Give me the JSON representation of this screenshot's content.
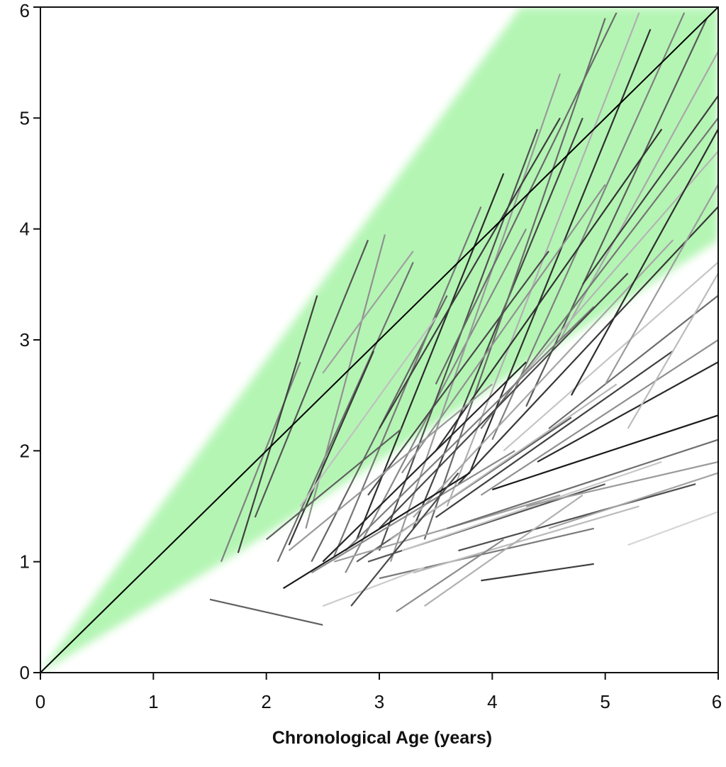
{
  "chart_data": {
    "type": "line",
    "title": "",
    "xlabel": "Chronological Age (years)",
    "ylabel": "",
    "xlim": [
      0,
      6
    ],
    "ylim": [
      0,
      6
    ],
    "x_ticks": [
      "0",
      "1",
      "2",
      "3",
      "4",
      "5",
      "6"
    ],
    "y_ticks": [
      "0",
      "1",
      "2",
      "3",
      "4",
      "5",
      "6"
    ],
    "grid": false,
    "legend": "none",
    "reference_line": {
      "x": [
        0,
        6
      ],
      "y": [
        0,
        6
      ],
      "color": "#000000"
    },
    "normal_band": {
      "color": "#b4f5b4",
      "polygon": [
        [
          0,
          0
        ],
        [
          1.7,
          1.05
        ],
        [
          6,
          3.9
        ],
        [
          6,
          6
        ],
        [
          4.25,
          6
        ]
      ]
    },
    "series": [
      {
        "x": [
          1.5,
          2.5
        ],
        "y": [
          0.66,
          0.43
        ],
        "color": "#606060"
      },
      {
        "x": [
          1.6,
          2.3
        ],
        "y": [
          1.0,
          2.8
        ],
        "color": "#808080"
      },
      {
        "x": [
          1.75,
          2.45
        ],
        "y": [
          1.08,
          3.4
        ],
        "color": "#404040"
      },
      {
        "x": [
          1.9,
          2.9
        ],
        "y": [
          1.4,
          3.9
        ],
        "color": "#555555"
      },
      {
        "x": [
          2.1,
          3.3
        ],
        "y": [
          1.0,
          3.7
        ],
        "color": "#707070"
      },
      {
        "x": [
          2.35,
          3.05
        ],
        "y": [
          1.3,
          3.95
        ],
        "color": "#909090"
      },
      {
        "x": [
          2.5,
          3.3
        ],
        "y": [
          2.7,
          3.8
        ],
        "color": "#a0a0a0"
      },
      {
        "x": [
          2.2,
          2.95
        ],
        "y": [
          1.15,
          2.9
        ],
        "color": "#3a3a3a"
      },
      {
        "x": [
          2.4,
          3.6
        ],
        "y": [
          1.0,
          3.4
        ],
        "color": "#666666"
      },
      {
        "x": [
          2.6,
          3.9
        ],
        "y": [
          1.05,
          4.2
        ],
        "color": "#777777"
      },
      {
        "x": [
          2.8,
          4.1
        ],
        "y": [
          1.2,
          4.5
        ],
        "color": "#2c2c2c"
      },
      {
        "x": [
          2.7,
          4.3
        ],
        "y": [
          0.9,
          4.0
        ],
        "color": "#888888"
      },
      {
        "x": [
          3.0,
          4.4
        ],
        "y": [
          1.1,
          4.9
        ],
        "color": "#505050"
      },
      {
        "x": [
          3.1,
          4.6
        ],
        "y": [
          1.0,
          5.4
        ],
        "color": "#999999"
      },
      {
        "x": [
          3.3,
          4.8
        ],
        "y": [
          1.3,
          5.0
        ],
        "color": "#454545"
      },
      {
        "x": [
          3.4,
          5.0
        ],
        "y": [
          1.2,
          5.9
        ],
        "color": "#6a6a6a"
      },
      {
        "x": [
          3.6,
          5.3
        ],
        "y": [
          1.5,
          5.95
        ],
        "color": "#b0b0b0"
      },
      {
        "x": [
          3.8,
          5.4
        ],
        "y": [
          1.8,
          5.8
        ],
        "color": "#303030"
      },
      {
        "x": [
          4.0,
          5.7
        ],
        "y": [
          2.1,
          5.95
        ],
        "color": "#808080"
      },
      {
        "x": [
          4.3,
          5.9
        ],
        "y": [
          2.4,
          5.9
        ],
        "color": "#5a5a5a"
      },
      {
        "x": [
          4.6,
          6.0
        ],
        "y": [
          3.0,
          5.6
        ],
        "color": "#a8a8a8"
      },
      {
        "x": [
          4.8,
          6.0
        ],
        "y": [
          3.5,
          5.2
        ],
        "color": "#404040"
      },
      {
        "x": [
          2.3,
          3.5
        ],
        "y": [
          1.5,
          3.2
        ],
        "color": "#c0c0c0"
      },
      {
        "x": [
          2.9,
          4.5
        ],
        "y": [
          1.6,
          3.8
        ],
        "color": "#4a4a4a"
      },
      {
        "x": [
          3.2,
          5.0
        ],
        "y": [
          1.8,
          4.4
        ],
        "color": "#909090"
      },
      {
        "x": [
          3.5,
          5.5
        ],
        "y": [
          2.0,
          4.9
        ],
        "color": "#333333"
      },
      {
        "x": [
          3.9,
          6.0
        ],
        "y": [
          2.2,
          5.0
        ],
        "color": "#757575"
      },
      {
        "x": [
          4.2,
          6.0
        ],
        "y": [
          2.6,
          4.7
        ],
        "color": "#b5b5b5"
      },
      {
        "x": [
          2.0,
          3.2
        ],
        "y": [
          1.2,
          2.2
        ],
        "color": "#5f5f5f"
      },
      {
        "x": [
          2.2,
          4.0
        ],
        "y": [
          1.1,
          2.6
        ],
        "color": "#999999"
      },
      {
        "x": [
          2.5,
          4.3
        ],
        "y": [
          1.0,
          2.8
        ],
        "color": "#262626"
      },
      {
        "x": [
          2.7,
          4.9
        ],
        "y": [
          1.1,
          3.3
        ],
        "color": "#7d7d7d"
      },
      {
        "x": [
          3.0,
          5.2
        ],
        "y": [
          1.3,
          3.6
        ],
        "color": "#484848"
      },
      {
        "x": [
          3.3,
          5.6
        ],
        "y": [
          1.4,
          3.9
        ],
        "color": "#a5a5a5"
      },
      {
        "x": [
          3.7,
          6.0
        ],
        "y": [
          1.7,
          4.2
        ],
        "color": "#383838"
      },
      {
        "x": [
          4.1,
          6.0
        ],
        "y": [
          2.0,
          3.7
        ],
        "color": "#c5c5c5"
      },
      {
        "x": [
          4.5,
          6.0
        ],
        "y": [
          2.2,
          3.4
        ],
        "color": "#6c6c6c"
      },
      {
        "x": [
          2.15,
          3.8
        ],
        "y": [
          0.76,
          1.8
        ],
        "color": "#1c1c1c"
      },
      {
        "x": [
          2.4,
          4.2
        ],
        "y": [
          0.9,
          2.0
        ],
        "color": "#8a8a8a"
      },
      {
        "x": [
          2.8,
          4.7
        ],
        "y": [
          1.0,
          2.3
        ],
        "color": "#5c5c5c"
      },
      {
        "x": [
          3.1,
          5.1
        ],
        "y": [
          1.2,
          2.6
        ],
        "color": "#b8b8b8"
      },
      {
        "x": [
          3.5,
          5.6
        ],
        "y": [
          1.4,
          2.9
        ],
        "color": "#404040"
      },
      {
        "x": [
          3.9,
          6.0
        ],
        "y": [
          1.6,
          3.0
        ],
        "color": "#8f8f8f"
      },
      {
        "x": [
          4.4,
          6.0
        ],
        "y": [
          1.9,
          2.8
        ],
        "color": "#2a2a2a"
      },
      {
        "x": [
          4.0,
          6.0
        ],
        "y": [
          1.65,
          2.32
        ],
        "color": "#1a1a1a"
      },
      {
        "x": [
          2.6,
          4.6
        ],
        "y": [
          1.0,
          1.6
        ],
        "color": "#a0a0a0"
      },
      {
        "x": [
          2.9,
          5.0
        ],
        "y": [
          1.0,
          1.7
        ],
        "color": "#555555"
      },
      {
        "x": [
          3.2,
          5.5
        ],
        "y": [
          1.1,
          1.9
        ],
        "color": "#c8c8c8"
      },
      {
        "x": [
          3.6,
          6.0
        ],
        "y": [
          1.3,
          2.1
        ],
        "color": "#6f6f6f"
      },
      {
        "x": [
          4.3,
          6.0
        ],
        "y": [
          1.5,
          1.9
        ],
        "color": "#9a9a9a"
      },
      {
        "x": [
          3.0,
          4.9
        ],
        "y": [
          0.85,
          1.3
        ],
        "color": "#7a7a7a"
      },
      {
        "x": [
          3.3,
          5.3
        ],
        "y": [
          0.9,
          1.5
        ],
        "color": "#bbbbbb"
      },
      {
        "x": [
          3.7,
          5.8
        ],
        "y": [
          1.1,
          1.7
        ],
        "color": "#4e4e4e"
      },
      {
        "x": [
          4.5,
          6.0
        ],
        "y": [
          1.3,
          1.8
        ],
        "color": "#a3a3a3"
      },
      {
        "x": [
          5.2,
          6.0
        ],
        "y": [
          1.15,
          1.45
        ],
        "color": "#d6d6d6"
      },
      {
        "x": [
          3.9,
          4.9
        ],
        "y": [
          0.83,
          0.98
        ],
        "color": "#3c3c3c"
      },
      {
        "x": [
          2.5,
          3.4
        ],
        "y": [
          0.6,
          0.95
        ],
        "color": "#cccccc"
      },
      {
        "x": [
          3.15,
          4.1
        ],
        "y": [
          0.55,
          1.2
        ],
        "color": "#8c8c8c"
      },
      {
        "x": [
          3.4,
          4.8
        ],
        "y": [
          0.6,
          1.6
        ],
        "color": "#b0b0b0"
      },
      {
        "x": [
          2.75,
          3.7
        ],
        "y": [
          0.6,
          1.8
        ],
        "color": "#4a4a4a"
      },
      {
        "x": [
          4.7,
          6.0
        ],
        "y": [
          2.5,
          4.9
        ],
        "color": "#2e2e2e"
      },
      {
        "x": [
          5.0,
          6.0
        ],
        "y": [
          2.6,
          4.4
        ],
        "color": "#9c9c9c"
      },
      {
        "x": [
          5.2,
          6.0
        ],
        "y": [
          2.2,
          3.6
        ],
        "color": "#bcbcbc"
      },
      {
        "x": [
          3.0,
          4.6
        ],
        "y": [
          2.2,
          5.0
        ],
        "color": "#3e3e3e"
      },
      {
        "x": [
          3.5,
          5.1
        ],
        "y": [
          2.6,
          5.95
        ],
        "color": "#6a6a6a"
      }
    ]
  }
}
